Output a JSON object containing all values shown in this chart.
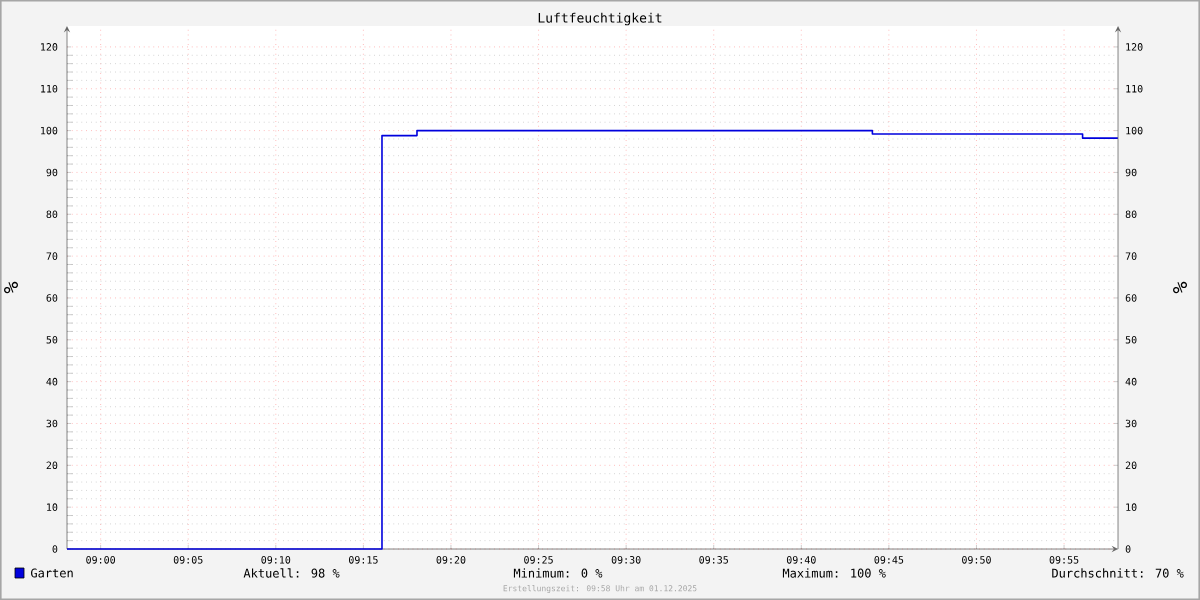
{
  "chart_data": {
    "type": "step",
    "title": "Luftfeuchtigkeit",
    "ylabel": "%",
    "y2label": "%",
    "x": [
      8.968,
      9.2677,
      9.301,
      9.7343,
      9.9343,
      9.968
    ],
    "series": [
      {
        "name": "Garten",
        "color": "#0000dd",
        "values": [
          0,
          98.8,
          100,
          99.2,
          98.2,
          98.2
        ]
      }
    ],
    "xlim": [
      8.968,
      9.968
    ],
    "xticks": [
      {
        "value": 9.0,
        "label": "09:00"
      },
      {
        "value": 9.08333,
        "label": "09:05"
      },
      {
        "value": 9.16667,
        "label": "09:10"
      },
      {
        "value": 9.25,
        "label": "09:15"
      },
      {
        "value": 9.33333,
        "label": "09:20"
      },
      {
        "value": 9.41667,
        "label": "09:25"
      },
      {
        "value": 9.5,
        "label": "09:30"
      },
      {
        "value": 9.58333,
        "label": "09:35"
      },
      {
        "value": 9.66667,
        "label": "09:40"
      },
      {
        "value": 9.75,
        "label": "09:45"
      },
      {
        "value": 9.83333,
        "label": "09:50"
      },
      {
        "value": 9.91667,
        "label": "09:55"
      }
    ],
    "ylim": [
      0,
      125
    ],
    "yticks": [
      0,
      10,
      20,
      30,
      40,
      50,
      60,
      70,
      80,
      90,
      100,
      110,
      120
    ],
    "y2lim": [
      0,
      125
    ],
    "y2ticks": [
      0,
      10,
      20,
      30,
      40,
      50,
      60,
      70,
      80,
      90,
      100,
      110,
      120
    ],
    "grid": true,
    "legend": "bottom left",
    "marker": "none",
    "line_style": "solid",
    "annotations": [
      "Aktuell:  98 %",
      "Minimum:   0 %",
      "Maximum: 100 %",
      "Durchschnitt:  70 %",
      "Erstellungszeit: 09:58 Uhr am 01.12.2025"
    ]
  }
}
